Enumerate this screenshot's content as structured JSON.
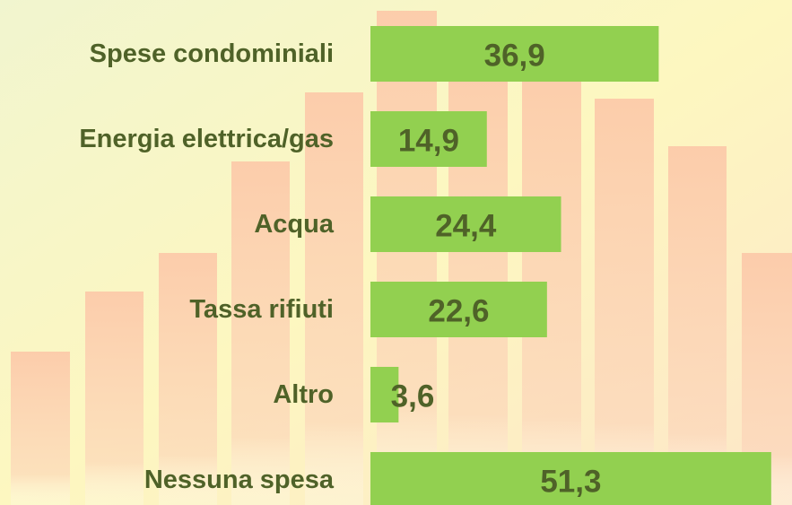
{
  "chart_data": {
    "type": "bar",
    "orientation": "horizontal",
    "categories": [
      "Spese condominiali",
      "Energia elettrica/gas",
      "Acqua",
      "Tassa rifiuti",
      "Altro",
      "Nessuna spesa"
    ],
    "values": [
      36.9,
      14.9,
      24.4,
      22.6,
      3.6,
      51.3
    ],
    "value_labels": [
      "36,9",
      "14,9",
      "24,4",
      "22,6",
      "3,6",
      "51,3"
    ],
    "color": "#92d050"
  }
}
